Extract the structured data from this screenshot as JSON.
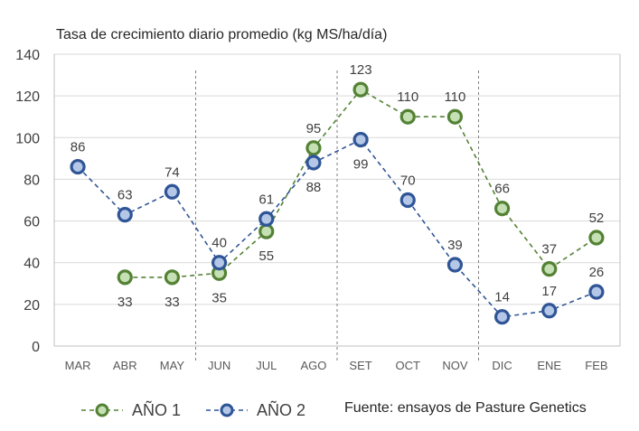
{
  "chart_data": {
    "type": "line",
    "title": "Tasa de crecimiento diario promedio (kg MS/ha/día)",
    "categories": [
      "MAR",
      "ABR",
      "MAY",
      "JUN",
      "JUL",
      "AGO",
      "SET",
      "OCT",
      "NOV",
      "DIC",
      "ENE",
      "FEB"
    ],
    "series": [
      {
        "name": "AÑO 1",
        "values": [
          null,
          33,
          33,
          35,
          55,
          95,
          123,
          110,
          110,
          66,
          37,
          52
        ],
        "color": "#548235",
        "fill": "#c5e0b4"
      },
      {
        "name": "AÑO 2",
        "values": [
          86,
          63,
          74,
          40,
          61,
          88,
          99,
          70,
          39,
          14,
          17,
          26
        ],
        "color": "#2f5597",
        "fill": "#b4c7e7"
      }
    ],
    "ylim": [
      0,
      140
    ],
    "yticks": [
      0,
      20,
      40,
      60,
      80,
      100,
      120,
      140
    ],
    "grid": true,
    "separators_after": [
      "MAY",
      "AGO",
      "NOV"
    ],
    "legend_position": "bottom-left"
  },
  "source": "Fuente: ensayos de Pasture Genetics"
}
